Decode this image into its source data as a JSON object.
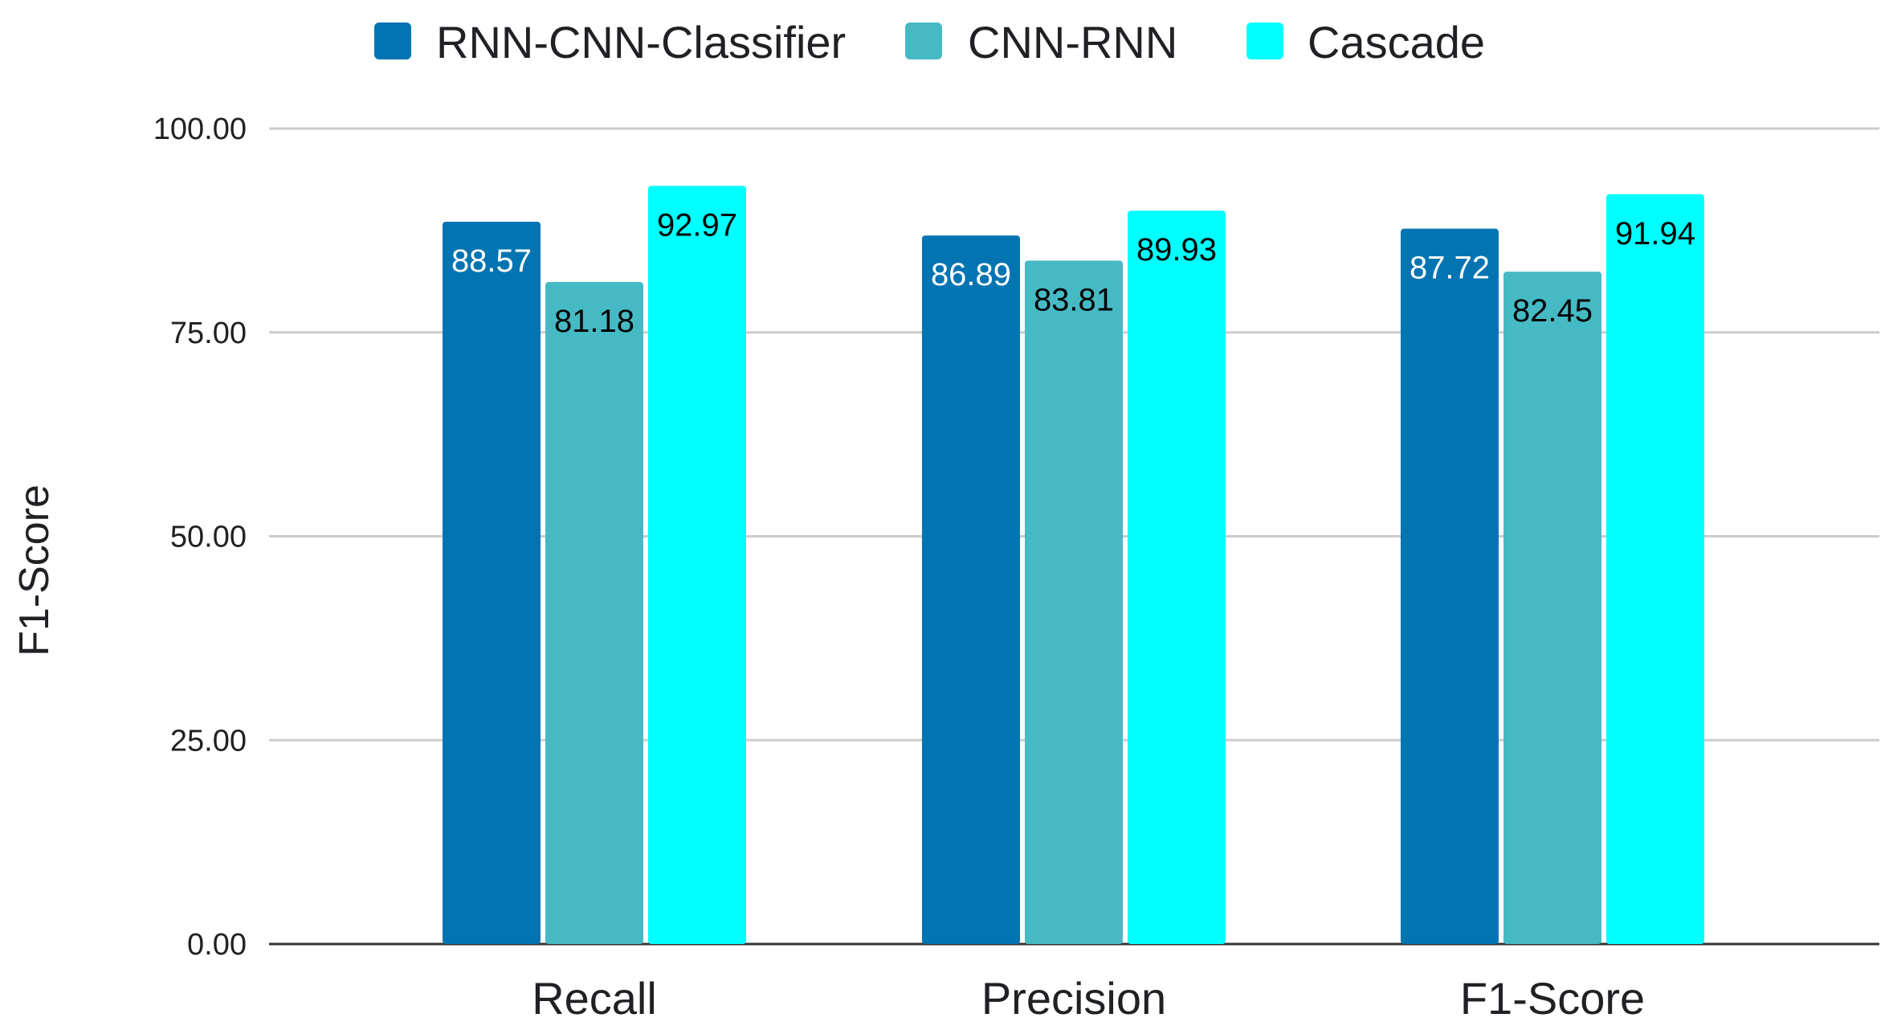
{
  "chart_data": {
    "type": "bar",
    "title": "",
    "xlabel": "",
    "ylabel": "F1-Score",
    "ylim": [
      0,
      100
    ],
    "yticks": [
      "0.00",
      "25.00",
      "50.00",
      "75.00",
      "100.00"
    ],
    "ytick_values": [
      0,
      25,
      50,
      75,
      100
    ],
    "categories": [
      "Recall",
      "Precision",
      "F1-Score"
    ],
    "series": [
      {
        "name": "RNN-CNN-Classifier",
        "color": "#0274b1",
        "label_color": "#ffffff",
        "values": [
          88.57,
          86.89,
          87.72
        ],
        "labels": [
          "88.57",
          "86.89",
          "87.72"
        ]
      },
      {
        "name": "CNN-RNN",
        "color": "#46bac4",
        "label_color": "#000000",
        "values": [
          81.18,
          83.81,
          82.45
        ],
        "labels": [
          "81.18",
          "83.81",
          "82.45"
        ]
      },
      {
        "name": "Cascade",
        "color": "#00ffff",
        "label_color": "#000000",
        "values": [
          92.97,
          89.93,
          91.94
        ],
        "labels": [
          "92.97",
          "89.93",
          "91.94"
        ]
      }
    ],
    "grid": true,
    "legend": "top-center"
  }
}
